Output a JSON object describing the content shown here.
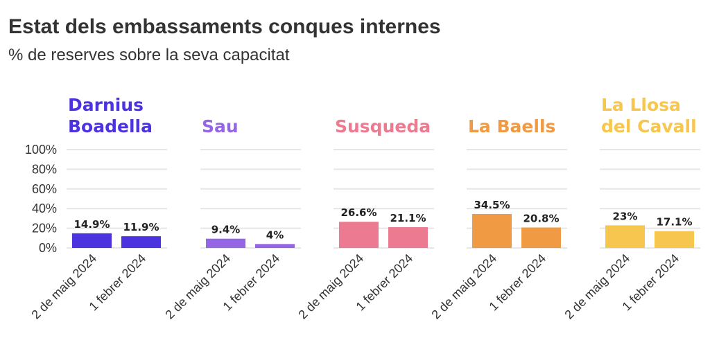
{
  "title": "Estat dels embassaments conques internes",
  "subtitle": "% de reserves sobre la seva capacitat",
  "chart_data": {
    "type": "bar",
    "title": "Estat dels embassaments conques internes",
    "subtitle": "% de reserves sobre la seva capacitat",
    "ylim": [
      0,
      100
    ],
    "yticks": [
      "0%",
      "20%",
      "40%",
      "60%",
      "80%",
      "100%"
    ],
    "ytick_values": [
      0,
      20,
      40,
      60,
      80,
      100
    ],
    "grid": true,
    "categories": [
      "2 de maig 2024",
      "1 febrer 2024"
    ],
    "panels": [
      {
        "name": "Darnius Boadella",
        "title_lines": [
          "Darnius",
          "Boadella"
        ],
        "color": "#4b33e0",
        "values": [
          14.9,
          11.9
        ],
        "labels": [
          "14.9%",
          "11.9%"
        ]
      },
      {
        "name": "Sau",
        "title_lines": [
          "Sau"
        ],
        "color": "#9466e6",
        "values": [
          9.4,
          4
        ],
        "labels": [
          "9.4%",
          "4%"
        ]
      },
      {
        "name": "Susqueda",
        "title_lines": [
          "Susqueda"
        ],
        "color": "#ec7a91",
        "values": [
          26.6,
          21.1
        ],
        "labels": [
          "26.6%",
          "21.1%"
        ]
      },
      {
        "name": "La Baells",
        "title_lines": [
          "La Baells"
        ],
        "color": "#f09a44",
        "values": [
          34.5,
          20.8
        ],
        "labels": [
          "34.5%",
          "20.8%"
        ]
      },
      {
        "name": "La Llosa del Cavall",
        "title_lines": [
          "La Llosa",
          "del Cavall"
        ],
        "color": "#f6c64e",
        "values": [
          23,
          17.1
        ],
        "labels": [
          "23%",
          "17.1%"
        ]
      }
    ]
  }
}
